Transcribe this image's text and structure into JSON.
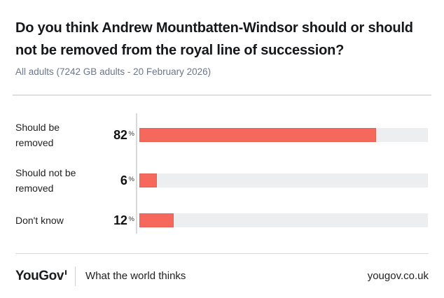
{
  "header": {
    "title": "Do you think Andrew Mountbatten-Windsor should or should not be removed from the royal line of succession?",
    "title_lines": [
      "Do you think Andrew Mountbatten-Windsor should or should",
      "not be removed from the royal line of succession?"
    ],
    "subtitle": "All adults (7242 GB adults - 20 February 2026)"
  },
  "chart_data": {
    "type": "bar",
    "orientation": "horizontal",
    "title": "Do you think Andrew Mountbatten-Windsor should or should not be removed from the royal line of succession?",
    "subtitle": "All adults (7242 GB adults - 20 February 2026)",
    "categories": [
      "Should be removed",
      "Should not be removed",
      "Don't know"
    ],
    "values": [
      82,
      6,
      12
    ],
    "unit": "%",
    "xlim": [
      0,
      100
    ],
    "grid": false,
    "legend": "none",
    "bar_color": "#F7685C",
    "track_color": "#EDEEF0"
  },
  "footer": {
    "logo": "YouGov",
    "tagline": "What the world thinks",
    "url": "yougov.co.uk"
  }
}
